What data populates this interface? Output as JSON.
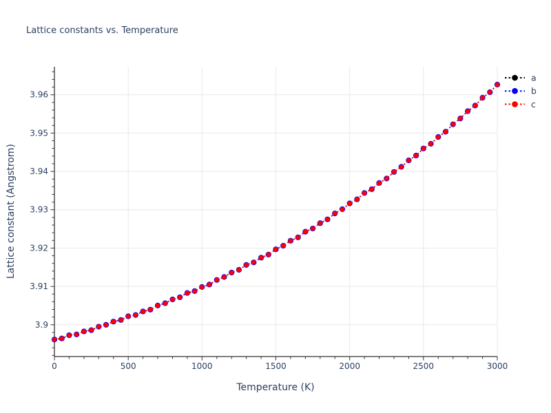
{
  "chart_data": {
    "type": "line",
    "title": "Lattice constants vs. Temperature",
    "xlabel": "Temperature (K)",
    "ylabel": "Lattice constant (Angstrom)",
    "xlim": [
      0,
      3000
    ],
    "ylim": [
      3.8917,
      3.9673
    ],
    "grid": true,
    "legend_position": "outside-top-right",
    "x_ticks": [
      0,
      500,
      1000,
      1500,
      2000,
      2500,
      3000
    ],
    "x_tick_labels": [
      "0",
      "500",
      "1000",
      "1500",
      "2000",
      "2500",
      "3000"
    ],
    "y_ticks": [
      3.9,
      3.91,
      3.92,
      3.93,
      3.94,
      3.95,
      3.96
    ],
    "y_tick_labels": [
      "3.9",
      "3.91",
      "3.92",
      "3.93",
      "3.94",
      "3.95",
      "3.96"
    ],
    "x_minor_step": 100,
    "y_minor_step": 0.002,
    "line_style": "dot",
    "marker": "circle",
    "series_overlap": true,
    "series": [
      {
        "name": "a",
        "color": "#000000"
      },
      {
        "name": "b",
        "color": "#0000ff"
      },
      {
        "name": "c",
        "color": "#ff0000"
      }
    ],
    "x": [
      0,
      50,
      100,
      150,
      200,
      250,
      300,
      350,
      400,
      450,
      500,
      550,
      600,
      650,
      700,
      750,
      800,
      850,
      900,
      950,
      1000,
      1050,
      1100,
      1150,
      1200,
      1250,
      1300,
      1350,
      1400,
      1450,
      1500,
      1550,
      1600,
      1650,
      1700,
      1750,
      1800,
      1850,
      1900,
      1950,
      2000,
      2050,
      2100,
      2150,
      2200,
      2250,
      2300,
      2350,
      2400,
      2450,
      2500,
      2550,
      2600,
      2650,
      2700,
      2750,
      2800,
      2850,
      2900,
      2950,
      3000
    ],
    "y": [
      3.89615,
      3.89643,
      3.89727,
      3.89748,
      3.89825,
      3.89859,
      3.8995,
      3.89998,
      3.90082,
      3.90123,
      3.90221,
      3.90255,
      3.90347,
      3.90395,
      3.905,
      3.90562,
      3.90661,
      3.90716,
      3.90829,
      3.90878,
      3.90985,
      3.91048,
      3.91169,
      3.91246,
      3.91361,
      3.91433,
      3.91561,
      3.91627,
      3.9175,
      3.9183,
      3.91967,
      3.92061,
      3.92193,
      3.92281,
      3.92427,
      3.9251,
      3.92651,
      3.92748,
      3.92903,
      3.93015,
      3.93165,
      3.93272,
      3.93436,
      3.93538,
      3.93697,
      3.93814,
      3.93987,
      3.94119,
      3.94288,
      3.94414,
      3.94598,
      3.9472,
      3.94899,
      3.95035,
      3.95229,
      3.95381,
      3.95571,
      3.95718,
      3.95922,
      3.96065,
      3.96265
    ]
  },
  "colors": {
    "text": "#2a3f5f",
    "axis_line": "#333333",
    "gridline": "#e8e8e8",
    "background": "#ffffff"
  }
}
